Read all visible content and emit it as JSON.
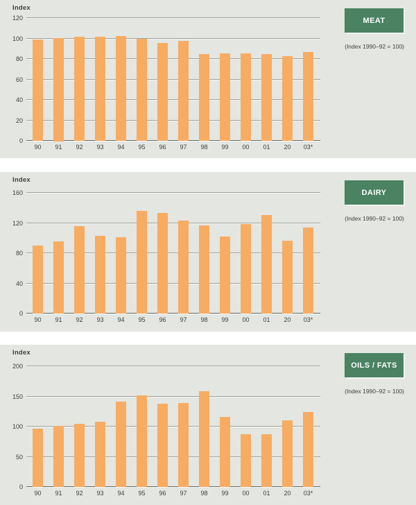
{
  "colors": {
    "panel_background": "#e3e6e1",
    "page_background": "#ffffff",
    "bar": "#f8ac62",
    "gridline": "#9ea39b",
    "baseline": "#676c66",
    "badge_background": "#4a8262",
    "badge_text": "#ffffff",
    "text": "#3c413c"
  },
  "chart_data": [
    {
      "type": "bar",
      "title": "MEAT",
      "badge": "MEAT",
      "caption": "(Index 1990–92 = 100)",
      "ylabel": "Index",
      "ylim": [
        0,
        120
      ],
      "yticks": [
        0,
        20,
        40,
        60,
        80,
        100,
        120
      ],
      "grid": true,
      "categories": [
        "90",
        "91",
        "92",
        "93",
        "94",
        "95",
        "96",
        "97",
        "98",
        "99",
        "00",
        "01",
        "20",
        "03*"
      ],
      "values": [
        98,
        100,
        101,
        101,
        102,
        99,
        95,
        97,
        84,
        85,
        85,
        84,
        82,
        86
      ]
    },
    {
      "type": "bar",
      "title": "DAIRY",
      "badge": "DAIRY",
      "caption": "(Index 1990–92 = 100)",
      "ylabel": "Index",
      "ylim": [
        0,
        160
      ],
      "yticks": [
        0,
        40,
        80,
        120,
        160
      ],
      "grid": true,
      "categories": [
        "90",
        "91",
        "92",
        "93",
        "94",
        "95",
        "96",
        "97",
        "98",
        "99",
        "00",
        "01",
        "20",
        "03*"
      ],
      "values": [
        89,
        95,
        115,
        102,
        100,
        135,
        132,
        122,
        116,
        101,
        118,
        130,
        96,
        113
      ]
    },
    {
      "type": "bar",
      "title": "OILS / FATS",
      "badge": "OILS / FATS",
      "caption": "(Index 1990–92 = 100)",
      "ylabel": "Index",
      "ylim": [
        0,
        200
      ],
      "yticks": [
        0,
        50,
        100,
        150,
        200
      ],
      "grid": true,
      "categories": [
        "90",
        "91",
        "92",
        "93",
        "94",
        "95",
        "96",
        "97",
        "98",
        "99",
        "00",
        "01",
        "20",
        "03*"
      ],
      "values": [
        95,
        100,
        104,
        107,
        140,
        151,
        137,
        138,
        157,
        115,
        86,
        86,
        109,
        123
      ]
    }
  ]
}
